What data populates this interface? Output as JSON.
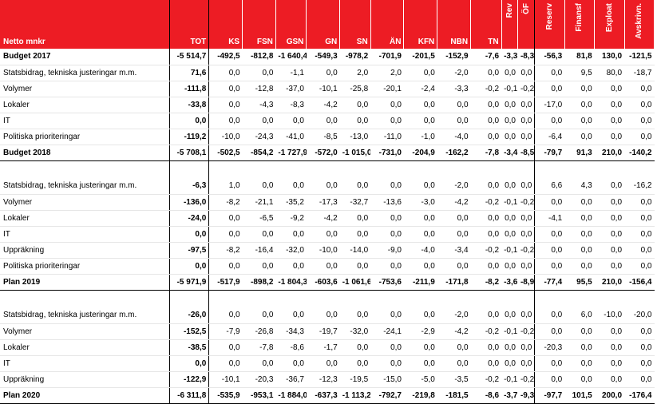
{
  "header": {
    "title": "Netto mnkr",
    "columns": [
      "TOT",
      "KS",
      "FSN",
      "GSN",
      "GN",
      "SN",
      "ÄN",
      "KFN",
      "NBN",
      "TN",
      "Rev",
      "ÖF",
      "Reserv",
      "Finansf",
      "Exploat",
      "Avskrivn."
    ]
  },
  "rows": [
    {
      "label": "Budget 2017",
      "bold": true,
      "values": [
        "-5 514,7",
        "-492,5",
        "-812,8",
        "-1 640,4",
        "-549,3",
        "-978,2",
        "-701,9",
        "-201,5",
        "-152,9",
        "-7,6",
        "-3,3",
        "-8,3",
        "-56,3",
        "81,8",
        "130,0",
        "-121,5"
      ]
    },
    {
      "label": "Statsbidrag, tekniska justeringar m.m.",
      "values": [
        "71,6",
        "0,0",
        "0,0",
        "-1,1",
        "0,0",
        "2,0",
        "2,0",
        "0,0",
        "-2,0",
        "0,0",
        "0,0",
        "0,0",
        "0,0",
        "9,5",
        "80,0",
        "-18,7"
      ]
    },
    {
      "label": "Volymer",
      "values": [
        "-111,8",
        "0,0",
        "-12,8",
        "-37,0",
        "-10,1",
        "-25,8",
        "-20,1",
        "-2,4",
        "-3,3",
        "-0,2",
        "-0,1",
        "-0,2",
        "0,0",
        "0,0",
        "0,0",
        "0,0"
      ]
    },
    {
      "label": "Lokaler",
      "values": [
        "-33,8",
        "0,0",
        "-4,3",
        "-8,3",
        "-4,2",
        "0,0",
        "0,0",
        "0,0",
        "0,0",
        "0,0",
        "0,0",
        "0,0",
        "-17,0",
        "0,0",
        "0,0",
        "0,0"
      ]
    },
    {
      "label": "IT",
      "values": [
        "0,0",
        "0,0",
        "0,0",
        "0,0",
        "0,0",
        "0,0",
        "0,0",
        "0,0",
        "0,0",
        "0,0",
        "0,0",
        "0,0",
        "0,0",
        "0,0",
        "0,0",
        "0,0"
      ]
    },
    {
      "label": "Politiska prioriteringar",
      "values": [
        "-119,2",
        "-10,0",
        "-24,3",
        "-41,0",
        "-8,5",
        "-13,0",
        "-11,0",
        "-1,0",
        "-4,0",
        "0,0",
        "0,0",
        "0,0",
        "-6,4",
        "0,0",
        "0,0",
        "0,0"
      ]
    },
    {
      "label": "Budget 2018",
      "bold": true,
      "end": true,
      "values": [
        "-5 708,1",
        "-502,5",
        "-854,2",
        "-1 727,9",
        "-572,0",
        "-1 015,0",
        "-731,0",
        "-204,9",
        "-162,2",
        "-7,8",
        "-3,4",
        "-8,5",
        "-79,7",
        "91,3",
        "210,0",
        "-140,2"
      ]
    },
    {
      "spacer": true
    },
    {
      "label": "Statsbidrag, tekniska justeringar m.m.",
      "values": [
        "-6,3",
        "1,0",
        "0,0",
        "0,0",
        "0,0",
        "0,0",
        "0,0",
        "0,0",
        "-2,0",
        "0,0",
        "0,0",
        "0,0",
        "6,6",
        "4,3",
        "0,0",
        "-16,2"
      ]
    },
    {
      "label": "Volymer",
      "values": [
        "-136,0",
        "-8,2",
        "-21,1",
        "-35,2",
        "-17,3",
        "-32,7",
        "-13,6",
        "-3,0",
        "-4,2",
        "-0,2",
        "-0,1",
        "-0,2",
        "0,0",
        "0,0",
        "0,0",
        "0,0"
      ]
    },
    {
      "label": "Lokaler",
      "values": [
        "-24,0",
        "0,0",
        "-6,5",
        "-9,2",
        "-4,2",
        "0,0",
        "0,0",
        "0,0",
        "0,0",
        "0,0",
        "0,0",
        "0,0",
        "-4,1",
        "0,0",
        "0,0",
        "0,0"
      ]
    },
    {
      "label": "IT",
      "values": [
        "0,0",
        "0,0",
        "0,0",
        "0,0",
        "0,0",
        "0,0",
        "0,0",
        "0,0",
        "0,0",
        "0,0",
        "0,0",
        "0,0",
        "0,0",
        "0,0",
        "0,0",
        "0,0"
      ]
    },
    {
      "label": "Uppräkning",
      "values": [
        "-97,5",
        "-8,2",
        "-16,4",
        "-32,0",
        "-10,0",
        "-14,0",
        "-9,0",
        "-4,0",
        "-3,4",
        "-0,2",
        "-0,1",
        "-0,2",
        "0,0",
        "0,0",
        "0,0",
        "0,0"
      ]
    },
    {
      "label": "Politiska prioriteringar",
      "values": [
        "0,0",
        "0,0",
        "0,0",
        "0,0",
        "0,0",
        "0,0",
        "0,0",
        "0,0",
        "0,0",
        "0,0",
        "0,0",
        "0,0",
        "0,0",
        "0,0",
        "0,0",
        "0,0"
      ]
    },
    {
      "label": "Plan 2019",
      "bold": true,
      "end": true,
      "values": [
        "-5 971,9",
        "-517,9",
        "-898,2",
        "-1 804,3",
        "-603,6",
        "-1 061,6",
        "-753,6",
        "-211,9",
        "-171,8",
        "-8,2",
        "-3,6",
        "-8,9",
        "-77,4",
        "95,5",
        "210,0",
        "-156,4"
      ]
    },
    {
      "spacer": true
    },
    {
      "label": "Statsbidrag, tekniska justeringar m.m.",
      "values": [
        "-26,0",
        "0,0",
        "0,0",
        "0,0",
        "0,0",
        "0,0",
        "0,0",
        "0,0",
        "-2,0",
        "0,0",
        "0,0",
        "0,0",
        "0,0",
        "6,0",
        "-10,0",
        "-20,0"
      ]
    },
    {
      "label": "Volymer",
      "values": [
        "-152,5",
        "-7,9",
        "-26,8",
        "-34,3",
        "-19,7",
        "-32,0",
        "-24,1",
        "-2,9",
        "-4,2",
        "-0,2",
        "-0,1",
        "-0,2",
        "0,0",
        "0,0",
        "0,0",
        "0,0"
      ]
    },
    {
      "label": "Lokaler",
      "values": [
        "-38,5",
        "0,0",
        "-7,8",
        "-8,6",
        "-1,7",
        "0,0",
        "0,0",
        "0,0",
        "0,0",
        "0,0",
        "0,0",
        "0,0",
        "-20,3",
        "0,0",
        "0,0",
        "0,0"
      ]
    },
    {
      "label": "IT",
      "values": [
        "0,0",
        "0,0",
        "0,0",
        "0,0",
        "0,0",
        "0,0",
        "0,0",
        "0,0",
        "0,0",
        "0,0",
        "0,0",
        "0,0",
        "0,0",
        "0,0",
        "0,0",
        "0,0"
      ]
    },
    {
      "label": "Uppräkning",
      "values": [
        "-122,9",
        "-10,1",
        "-20,3",
        "-36,7",
        "-12,3",
        "-19,5",
        "-15,0",
        "-5,0",
        "-3,5",
        "-0,2",
        "-0,1",
        "-0,2",
        "0,0",
        "0,0",
        "0,0",
        "0,0"
      ]
    },
    {
      "label": "Plan 2020",
      "bold": true,
      "end": true,
      "values": [
        "-6 311,8",
        "-535,9",
        "-953,1",
        "-1 884,0",
        "-637,3",
        "-1 113,2",
        "-792,7",
        "-219,8",
        "-181,5",
        "-8,6",
        "-3,7",
        "-9,3",
        "-97,7",
        "101,5",
        "200,0",
        "-176,4"
      ]
    }
  ]
}
